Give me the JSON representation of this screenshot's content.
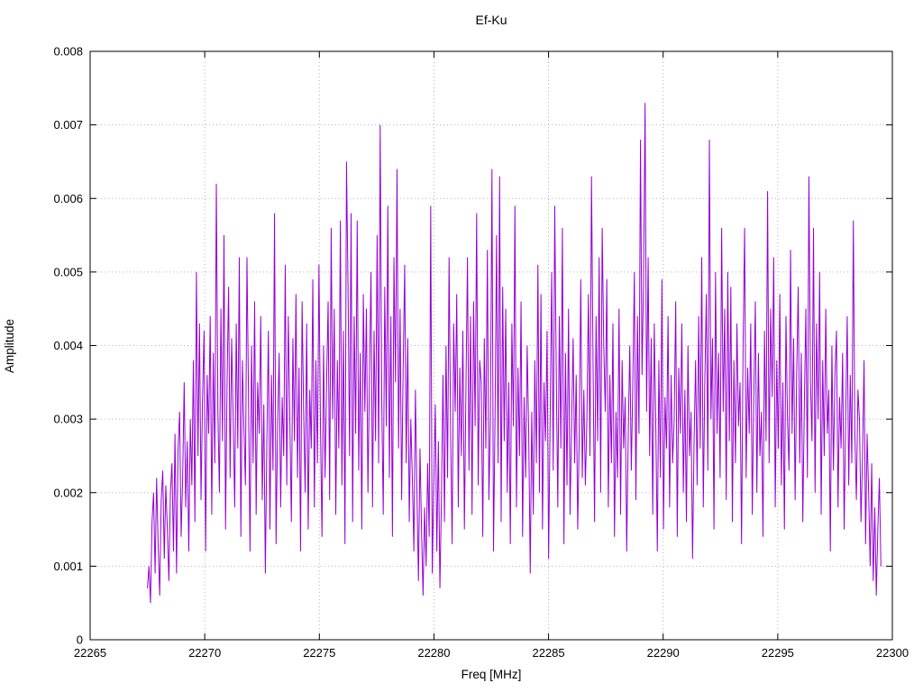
{
  "chart_data": {
    "type": "line",
    "title": "Ef-Ku",
    "xlabel": "Freq [MHz]",
    "ylabel": "Amplitude",
    "xlim": [
      22265,
      22300
    ],
    "ylim": [
      0,
      0.008
    ],
    "x_ticks": [
      22265,
      22270,
      22275,
      22280,
      22285,
      22290,
      22295,
      22300
    ],
    "y_ticks": [
      0,
      0.001,
      0.002,
      0.003,
      0.004,
      0.005,
      0.006,
      0.007,
      0.008
    ],
    "grid": true,
    "legend": "none",
    "line_color": "#9400D3",
    "x_start": 22267.5,
    "x_end": 22299.5,
    "amplitude_scale": 0.0001,
    "amplitudes_e4": [
      7,
      10,
      5,
      16,
      20,
      9,
      22,
      13,
      6,
      19,
      23,
      11,
      21,
      15,
      8,
      20,
      24,
      12,
      28,
      9,
      26,
      31,
      14,
      22,
      35,
      18,
      27,
      12,
      30,
      21,
      38,
      16,
      50,
      25,
      43,
      19,
      33,
      42,
      12,
      36,
      28,
      44,
      17,
      39,
      24,
      62,
      31,
      20,
      45,
      27,
      55,
      15,
      35,
      48,
      22,
      41,
      30,
      18,
      43,
      26,
      52,
      14,
      38,
      29,
      21,
      52,
      33,
      12,
      40,
      24,
      46,
      17,
      35,
      28,
      44,
      19,
      32,
      9,
      27,
      42,
      15,
      36,
      23,
      58,
      13,
      29,
      39,
      18,
      33,
      25,
      51,
      21,
      44,
      30,
      16,
      41,
      27,
      47,
      22,
      37,
      12,
      46,
      31,
      20,
      43,
      15,
      34,
      26,
      49,
      18,
      38,
      24,
      51,
      29,
      14,
      40,
      22,
      35,
      46,
      19,
      56,
      30,
      45,
      17,
      38,
      26,
      57,
      21,
      42,
      13,
      65,
      48,
      25,
      58,
      16,
      44,
      28,
      57,
      23,
      39,
      15,
      47,
      31,
      45,
      20,
      36,
      50,
      18,
      42,
      27,
      55,
      24,
      70,
      33,
      17,
      48,
      29,
      59,
      22,
      44,
      14,
      52,
      35,
      64,
      26,
      45,
      19,
      37,
      51,
      24,
      41,
      16,
      30,
      22,
      12,
      34,
      20,
      8,
      26,
      15,
      6,
      18,
      10,
      24,
      14,
      59,
      9,
      21,
      32,
      12,
      27,
      7,
      19,
      36,
      16,
      40,
      22,
      52,
      28,
      13,
      43,
      31,
      47,
      18,
      37,
      25,
      42,
      15,
      34,
      52,
      23,
      44,
      17,
      46,
      29,
      58,
      21,
      38,
      35,
      14,
      41,
      26,
      53,
      19,
      30,
      64,
      12,
      30,
      55,
      24,
      63,
      16,
      48,
      27,
      45,
      20,
      35,
      13,
      43,
      29,
      59,
      18,
      37,
      25,
      46,
      14,
      33,
      22,
      40,
      28,
      9,
      31,
      17,
      38,
      24,
      51,
      20,
      47,
      15,
      35,
      27,
      42,
      11,
      30,
      50,
      23,
      59,
      36,
      18,
      44,
      26,
      56,
      13,
      39,
      21,
      45,
      17,
      29,
      41,
      24,
      36,
      15,
      28,
      49,
      22,
      34,
      21,
      30,
      47,
      25,
      63,
      38,
      16,
      44,
      27,
      52,
      20,
      56,
      40,
      31,
      49,
      18,
      36,
      24,
      43,
      14,
      31,
      22,
      45,
      17,
      38,
      26,
      33,
      12,
      28,
      40,
      23,
      35,
      50,
      19,
      44,
      28,
      68,
      36,
      49,
      73,
      31,
      52,
      25,
      41,
      17,
      43,
      29,
      12,
      38,
      22,
      49,
      15,
      33,
      26,
      44,
      18,
      36,
      24,
      30,
      46,
      14,
      37,
      28,
      43,
      20,
      34,
      16,
      40,
      25,
      31,
      11,
      27,
      38,
      21,
      44,
      26,
      52,
      18,
      35,
      47,
      23,
      68,
      30,
      41,
      15,
      50,
      28,
      39,
      22,
      56,
      31,
      45,
      19,
      50,
      27,
      48,
      16,
      38,
      24,
      43,
      29,
      35,
      13,
      40,
      56,
      22,
      37,
      28,
      43,
      17,
      33,
      46,
      20,
      39,
      25,
      31,
      14,
      42,
      27,
      61,
      24,
      45,
      33,
      52,
      18,
      38,
      26,
      47,
      21,
      35,
      15,
      44,
      30,
      23,
      53,
      28,
      41,
      19,
      36,
      48,
      24,
      39,
      16,
      32,
      45,
      22,
      63,
      35,
      27,
      56,
      20,
      43,
      30,
      50,
      17,
      38,
      25,
      45,
      28,
      34,
      12,
      40,
      23,
      36,
      42,
      18,
      33,
      26,
      39,
      15,
      30,
      44,
      21,
      36,
      24,
      57,
      28,
      19,
      34,
      30,
      16,
      25,
      38,
      13,
      28,
      20,
      10,
      24,
      8,
      18,
      6,
      15,
      22,
      10
    ]
  }
}
